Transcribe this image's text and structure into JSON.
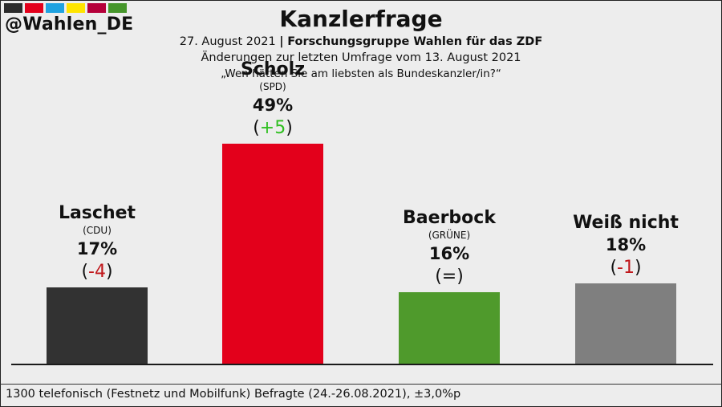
{
  "brand": {
    "handle": "@Wahlen_DE",
    "swatches": [
      "#2b2b2b",
      "#e3001b",
      "#1fa2e0",
      "#ffe400",
      "#b5003a",
      "#46962b"
    ]
  },
  "header": {
    "title": "Kanzlerfrage",
    "date": "27. August 2021",
    "separator": "|",
    "source": "Forschungsgruppe Wahlen für das ZDF",
    "comparison": "Änderungen zur letzten Umfrage vom 13. August 2021",
    "question": "„Wen hätten Sie am liebsten als Bundeskanzler/in?“"
  },
  "footer": {
    "note": "1300 telefonisch (Festnetz und Mobilfunk) Befragte (24.-26.08.2021), ±3,0%p"
  },
  "chart_data": {
    "type": "bar",
    "ylim": [
      0,
      60
    ],
    "categories": [
      "Laschet",
      "Scholz",
      "Baerbock",
      "Weiß nicht"
    ],
    "parties": [
      "CDU",
      "SPD",
      "GRÜNE",
      ""
    ],
    "values": [
      17,
      49,
      16,
      18
    ],
    "value_labels": [
      "17%",
      "49%",
      "16%",
      "18%"
    ],
    "changes": [
      "-4",
      "+5",
      "=",
      "-1"
    ],
    "bar_colors": [
      "#323232",
      "#e3001b",
      "#4f9a2c",
      "#7f7f7f"
    ],
    "change_colors": [
      "#c0171b",
      "#2ebf1f",
      "#111111",
      "#c0171b"
    ]
  }
}
